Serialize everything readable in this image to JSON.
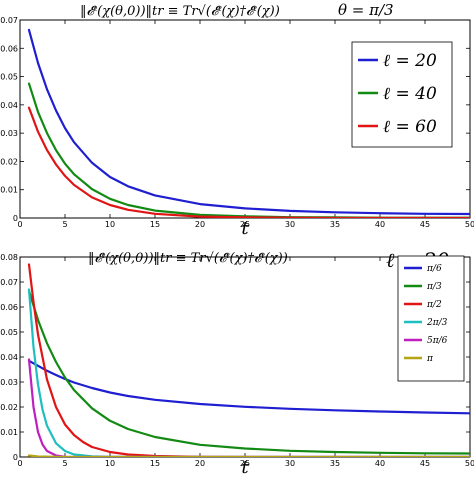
{
  "chart_data": [
    {
      "type": "line",
      "title": "‖𝓔ᵗ(χ(θ,0))‖tr ≡ Tr√(𝓔ᵗ(χ)†𝓔ᵗ(χ))",
      "subtitle": "θ = π/3",
      "xlabel": "t",
      "ylabel": "",
      "xlim": [
        0,
        50
      ],
      "ylim": [
        0,
        0.07
      ],
      "xticks": [
        "0",
        "5",
        "10",
        "15",
        "20",
        "25",
        "30",
        "35",
        "40",
        "45",
        "50"
      ],
      "yticks": [
        "0",
        "0.01",
        "0.02",
        "0.03",
        "0.04",
        "0.05",
        "0.06",
        "0.07"
      ],
      "grid": false,
      "legend_position": "top-right",
      "x": [
        1,
        2,
        3,
        4,
        5,
        6,
        8,
        10,
        12,
        15,
        20,
        25,
        30,
        35,
        40,
        45,
        50
      ],
      "series": [
        {
          "name": "ℓ = 20",
          "color": "#1f1fd1",
          "values": [
            0.0665,
            0.0548,
            0.0455,
            0.038,
            0.0318,
            0.0268,
            0.0195,
            0.0145,
            0.0112,
            0.008,
            0.0049,
            0.0034,
            0.0025,
            0.002,
            0.0017,
            0.0015,
            0.0014
          ]
        },
        {
          "name": "ℓ = 40",
          "color": "#138a13",
          "values": [
            0.0475,
            0.0375,
            0.03,
            0.024,
            0.0192,
            0.0155,
            0.0102,
            0.0068,
            0.0046,
            0.0026,
            0.0011,
            0.0006,
            0.0003,
            0.0002,
            0.0001,
            0.0001,
            0.0001
          ]
        },
        {
          "name": "ℓ = 60",
          "color": "#e01515",
          "values": [
            0.039,
            0.0305,
            0.024,
            0.0189,
            0.0149,
            0.0117,
            0.0073,
            0.0046,
            0.0029,
            0.0015,
            0.0005,
            0.0002,
            0.0001,
            0.0,
            0.0,
            0.0,
            0.0
          ]
        }
      ]
    },
    {
      "type": "line",
      "title": "‖𝓔ᵗ(χ(θ,0))‖tr ≡ Tr√(𝓔ᵗ(χ)†𝓔ᵗ(χ))",
      "subtitle": "ℓ = 20",
      "xlabel": "t",
      "ylabel": "",
      "xlim": [
        0,
        50
      ],
      "ylim": [
        0,
        0.08
      ],
      "xticks": [
        "0",
        "5",
        "10",
        "15",
        "20",
        "25",
        "30",
        "35",
        "40",
        "45",
        "50"
      ],
      "yticks": [
        "0",
        "0.01",
        "0.02",
        "0.03",
        "0.04",
        "0.05",
        "0.06",
        "0.07",
        "0.08"
      ],
      "grid": false,
      "legend_position": "top-right",
      "series": [
        {
          "name": "π/6",
          "color": "#1f1fd1",
          "x": [
            1,
            2,
            3,
            4,
            5,
            6,
            8,
            10,
            12,
            15,
            20,
            25,
            30,
            35,
            40,
            45,
            50
          ],
          "values": [
            0.0385,
            0.0365,
            0.0345,
            0.0328,
            0.0312,
            0.0298,
            0.0276,
            0.0258,
            0.0244,
            0.0229,
            0.0212,
            0.0201,
            0.0193,
            0.0187,
            0.0182,
            0.0178,
            0.0175
          ]
        },
        {
          "name": "π/3",
          "color": "#138a13",
          "x": [
            1,
            2,
            3,
            4,
            5,
            6,
            8,
            10,
            12,
            15,
            20,
            25,
            30,
            35,
            40,
            45,
            50
          ],
          "values": [
            0.0665,
            0.0548,
            0.0455,
            0.038,
            0.0318,
            0.0268,
            0.0195,
            0.0145,
            0.0112,
            0.008,
            0.0049,
            0.0034,
            0.0025,
            0.002,
            0.0017,
            0.0015,
            0.0014
          ]
        },
        {
          "name": "π/2",
          "color": "#e01515",
          "x": [
            1,
            1.5,
            2,
            3,
            4,
            5,
            6,
            7,
            8,
            10,
            12,
            15,
            20,
            30,
            50
          ],
          "values": [
            0.077,
            0.062,
            0.049,
            0.031,
            0.02,
            0.013,
            0.0088,
            0.006,
            0.004,
            0.002,
            0.001,
            0.0004,
            0.0001,
            0.0,
            0.0
          ]
        },
        {
          "name": "2π/3",
          "color": "#1fbfbf",
          "x": [
            1,
            1.5,
            2,
            2.5,
            3,
            4,
            5,
            6,
            8,
            10,
            15,
            50
          ],
          "values": [
            0.067,
            0.044,
            0.029,
            0.019,
            0.0125,
            0.0055,
            0.0024,
            0.001,
            0.0003,
            0.0001,
            0.0,
            0.0
          ]
        },
        {
          "name": "5π/6",
          "color": "#bf1fbf",
          "x": [
            1,
            1.5,
            2,
            2.5,
            3,
            4,
            5,
            10,
            50
          ],
          "values": [
            0.039,
            0.02,
            0.01,
            0.005,
            0.0024,
            0.0006,
            0.0001,
            0.0,
            0.0
          ]
        },
        {
          "name": "π",
          "color": "#b5a512",
          "x": [
            1,
            2,
            5,
            10,
            20,
            50
          ],
          "values": [
            0.0006,
            0.0002,
            0.0,
            0.0,
            0.0,
            0.0
          ]
        }
      ]
    }
  ]
}
